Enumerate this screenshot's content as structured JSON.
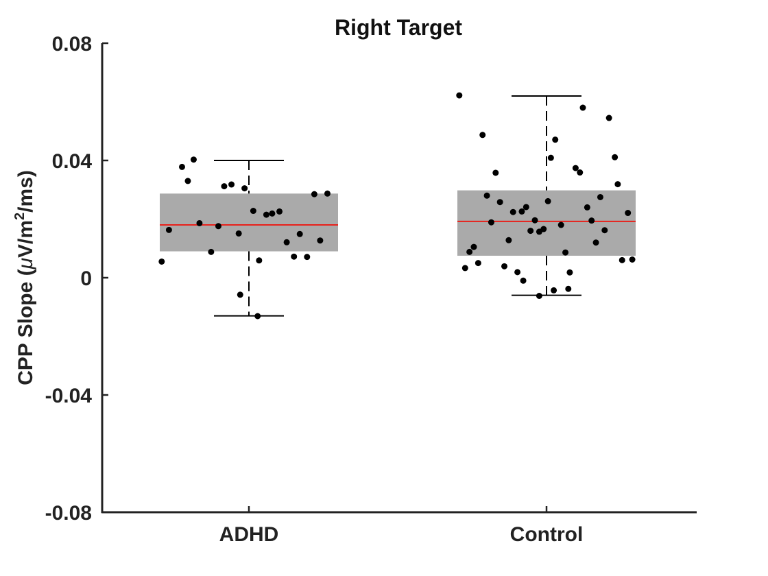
{
  "chart_data": {
    "type": "box",
    "title": "Right Target",
    "xlabel": "",
    "ylabel": "CPP Slope (μV/m²/ms)",
    "ylabel_parts": {
      "prefix": "CPP Slope (",
      "mu": "μ",
      "unit": "V/m",
      "sup": "2",
      "suffix": "/ms)"
    },
    "ylim": [
      -0.08,
      0.08
    ],
    "yticks": [
      -0.08,
      -0.04,
      0,
      0.04,
      0.08
    ],
    "ytick_labels": [
      "-0.08",
      "-0.04",
      "0",
      "0.04",
      "0.08"
    ],
    "categories": [
      "ADHD",
      "Control"
    ],
    "grid": false,
    "colors": {
      "box": "#aaaaaa",
      "median": "#e8201a",
      "points": "#000000",
      "whisker": "#000000",
      "axis": "#222222"
    },
    "groups": [
      {
        "name": "ADHD",
        "q1": 0.009,
        "median": 0.018,
        "q3": 0.0287,
        "whisker_low": -0.013,
        "whisker_high": 0.04,
        "points": [
          {
            "x": -0.6,
            "y": 0.0055
          },
          {
            "x": -0.55,
            "y": 0.0163
          },
          {
            "x": -0.46,
            "y": 0.0378
          },
          {
            "x": -0.42,
            "y": 0.033
          },
          {
            "x": -0.38,
            "y": 0.0403
          },
          {
            "x": -0.34,
            "y": 0.0186
          },
          {
            "x": -0.26,
            "y": 0.0088
          },
          {
            "x": -0.21,
            "y": 0.0176
          },
          {
            "x": -0.17,
            "y": 0.0312
          },
          {
            "x": -0.12,
            "y": 0.0318
          },
          {
            "x": -0.07,
            "y": 0.0151
          },
          {
            "x": -0.06,
            "y": -0.0058
          },
          {
            "x": -0.03,
            "y": 0.0305
          },
          {
            "x": 0.03,
            "y": 0.0228
          },
          {
            "x": 0.06,
            "y": -0.0131
          },
          {
            "x": 0.07,
            "y": 0.0059
          },
          {
            "x": 0.12,
            "y": 0.0215
          },
          {
            "x": 0.16,
            "y": 0.0219
          },
          {
            "x": 0.21,
            "y": 0.0226
          },
          {
            "x": 0.26,
            "y": 0.0121
          },
          {
            "x": 0.31,
            "y": 0.0072
          },
          {
            "x": 0.35,
            "y": 0.0149
          },
          {
            "x": 0.4,
            "y": 0.0071
          },
          {
            "x": 0.45,
            "y": 0.0285
          },
          {
            "x": 0.49,
            "y": 0.0127
          },
          {
            "x": 0.54,
            "y": 0.0287
          }
        ]
      },
      {
        "name": "Control",
        "q1": 0.0075,
        "median": 0.0192,
        "q3": 0.0298,
        "whisker_low": -0.006,
        "whisker_high": 0.062,
        "points": [
          {
            "x": -0.6,
            "y": 0.0622
          },
          {
            "x": -0.56,
            "y": 0.0033
          },
          {
            "x": -0.53,
            "y": 0.0088
          },
          {
            "x": -0.5,
            "y": 0.0105
          },
          {
            "x": -0.47,
            "y": 0.005
          },
          {
            "x": -0.44,
            "y": 0.0487
          },
          {
            "x": -0.41,
            "y": 0.028
          },
          {
            "x": -0.38,
            "y": 0.0189
          },
          {
            "x": -0.35,
            "y": 0.0358
          },
          {
            "x": -0.32,
            "y": 0.0258
          },
          {
            "x": -0.29,
            "y": 0.0039
          },
          {
            "x": -0.26,
            "y": 0.0128
          },
          {
            "x": -0.23,
            "y": 0.0224
          },
          {
            "x": -0.2,
            "y": 0.0019
          },
          {
            "x": -0.17,
            "y": 0.0226
          },
          {
            "x": -0.16,
            "y": -0.001
          },
          {
            "x": -0.14,
            "y": 0.0241
          },
          {
            "x": -0.11,
            "y": 0.016
          },
          {
            "x": -0.08,
            "y": 0.0196
          },
          {
            "x": -0.05,
            "y": -0.0062
          },
          {
            "x": -0.05,
            "y": 0.0157
          },
          {
            "x": -0.02,
            "y": 0.0166
          },
          {
            "x": 0.01,
            "y": 0.0261
          },
          {
            "x": 0.03,
            "y": 0.0409
          },
          {
            "x": 0.05,
            "y": -0.0043
          },
          {
            "x": 0.06,
            "y": 0.0471
          },
          {
            "x": 0.1,
            "y": 0.018
          },
          {
            "x": 0.13,
            "y": 0.0086
          },
          {
            "x": 0.15,
            "y": -0.0038
          },
          {
            "x": 0.16,
            "y": 0.0018
          },
          {
            "x": 0.2,
            "y": 0.0374
          },
          {
            "x": 0.23,
            "y": 0.0359
          },
          {
            "x": 0.25,
            "y": 0.058
          },
          {
            "x": 0.28,
            "y": 0.024
          },
          {
            "x": 0.31,
            "y": 0.0195
          },
          {
            "x": 0.34,
            "y": 0.012
          },
          {
            "x": 0.37,
            "y": 0.0275
          },
          {
            "x": 0.4,
            "y": 0.0162
          },
          {
            "x": 0.43,
            "y": 0.0545
          },
          {
            "x": 0.47,
            "y": 0.0411
          },
          {
            "x": 0.49,
            "y": 0.0319
          },
          {
            "x": 0.52,
            "y": 0.006
          },
          {
            "x": 0.56,
            "y": 0.0221
          },
          {
            "x": 0.59,
            "y": 0.0062
          }
        ]
      }
    ]
  }
}
